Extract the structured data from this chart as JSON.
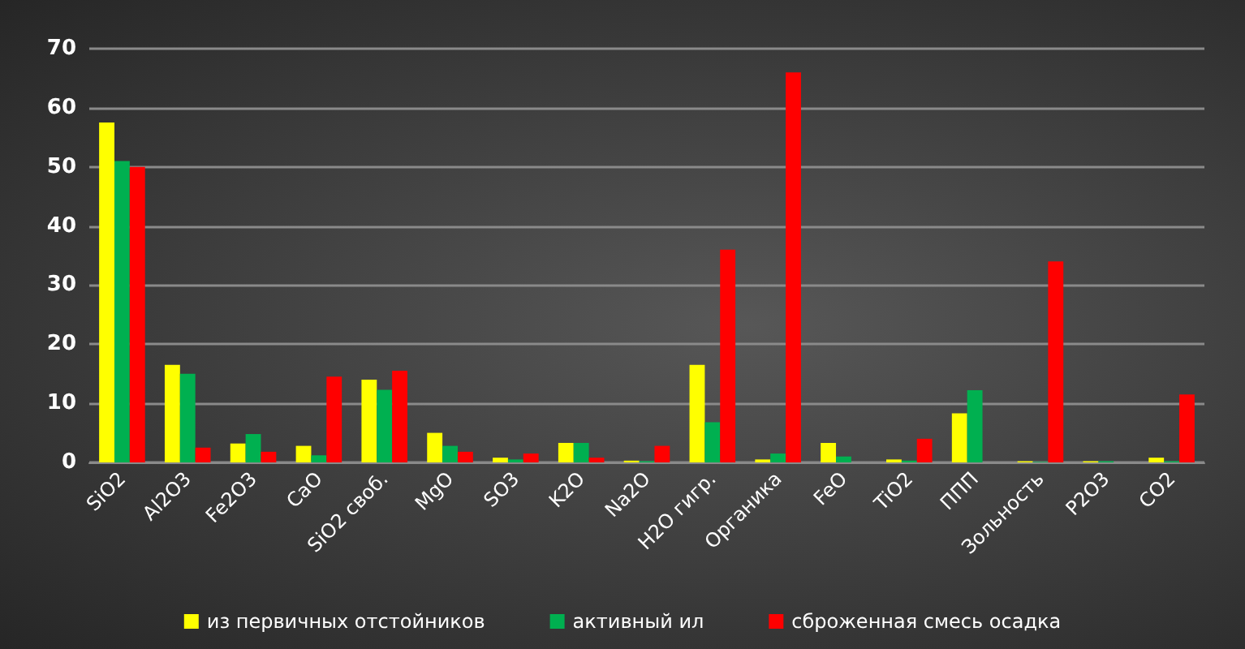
{
  "chart_data": {
    "type": "bar",
    "categories": [
      "SiO2",
      "Al2O3",
      "Fe2O3",
      "CaO",
      "SiO2 своб.",
      "MgO",
      "SO3",
      "K2O",
      "Na2O",
      "H2O гигр.",
      "Органика",
      "FeO",
      "TiO2",
      "ППП",
      "Зольность",
      "P2O3",
      "CO2"
    ],
    "series": [
      {
        "name": "из первичных отстойников",
        "color": "#ffff00",
        "values": [
          57.5,
          16.5,
          3.2,
          2.8,
          14,
          5,
          0.8,
          3.3,
          0.3,
          16.5,
          0.5,
          3.3,
          0.5,
          8.3,
          0.2,
          0.2,
          0.8
        ]
      },
      {
        "name": "активный ил",
        "color": "#00b050",
        "values": [
          51,
          15,
          4.8,
          1.2,
          12.3,
          2.8,
          0.5,
          3.3,
          0.2,
          6.8,
          1.5,
          1,
          0.3,
          12.2,
          0.1,
          0.2,
          0.2
        ]
      },
      {
        "name": "сброженная смесь осадка",
        "color": "#ff0000",
        "values": [
          50,
          2.5,
          1.8,
          14.5,
          15.5,
          1.8,
          1.5,
          0.8,
          2.8,
          36,
          66,
          null,
          4,
          null,
          34,
          null,
          11.5
        ]
      }
    ],
    "ylim": [
      0,
      70
    ],
    "yticks": [
      0,
      10,
      20,
      30,
      40,
      50,
      60,
      70
    ],
    "grid": "y",
    "legend": "bottom"
  }
}
